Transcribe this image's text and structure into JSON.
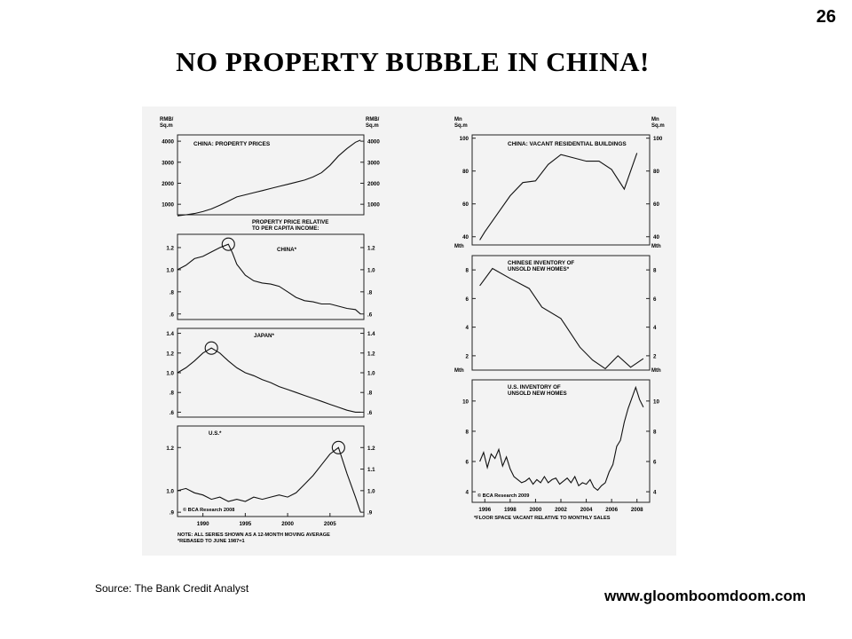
{
  "page_number": "26",
  "title": "NO PROPERTY BUBBLE IN CHINA!",
  "source": "Source: The Bank Credit Analyst",
  "website": "www.gloomboomdoom.com",
  "chart_data": [
    {
      "type": "line",
      "title": "CHINA: PROPERTY PRICES",
      "unit_label": [
        "RMB/",
        "Sq.m"
      ],
      "ylim": [
        500,
        4300
      ],
      "yticks": [
        1000,
        2000,
        3000,
        4000
      ],
      "xlim": [
        1987,
        2009
      ],
      "x": [
        1987,
        1988,
        1989,
        1990,
        1991,
        1992,
        1993,
        1994,
        1995,
        1996,
        1997,
        1998,
        1999,
        2000,
        2001,
        2002,
        2003,
        2004,
        2005,
        2006,
        2007,
        2008,
        2008.6
      ],
      "values": [
        450,
        500,
        560,
        650,
        780,
        950,
        1150,
        1350,
        1450,
        1550,
        1650,
        1750,
        1850,
        1950,
        2050,
        2150,
        2300,
        2500,
        2850,
        3300,
        3650,
        3950,
        4050
      ]
    },
    {
      "type": "line",
      "title": "PROPERTY PRICE RELATIVE TO PER CAPITA INCOME:",
      "title_lines": [
        "PROPERTY PRICE RELATIVE",
        "TO PER CAPITA INCOME:"
      ],
      "series_label": "CHINA*",
      "ylim": [
        0.55,
        1.32
      ],
      "yticks": [
        0.6,
        0.8,
        1.0,
        1.2
      ],
      "yticklabels": [
        ".6",
        ".8",
        "1.0",
        "1.2"
      ],
      "xlim": [
        1987,
        2009
      ],
      "peak_marker": [
        1993,
        1.23
      ],
      "x": [
        1987,
        1988,
        1989,
        1990,
        1991,
        1992,
        1993,
        1993.5,
        1994,
        1995,
        1996,
        1997,
        1998,
        1999,
        2000,
        2001,
        2002,
        2003,
        2004,
        2005,
        2006,
        2007,
        2008,
        2008.6
      ],
      "values": [
        1.0,
        1.04,
        1.1,
        1.12,
        1.16,
        1.2,
        1.23,
        1.15,
        1.05,
        0.95,
        0.9,
        0.88,
        0.87,
        0.85,
        0.8,
        0.75,
        0.72,
        0.71,
        0.69,
        0.69,
        0.67,
        0.65,
        0.64,
        0.6
      ]
    },
    {
      "type": "line",
      "series_label": "JAPAN*",
      "ylim": [
        0.55,
        1.45
      ],
      "yticks": [
        0.6,
        0.8,
        1.0,
        1.2,
        1.4
      ],
      "yticklabels": [
        ".6",
        ".8",
        "1.0",
        "1.2",
        "1.4"
      ],
      "xlim": [
        1987,
        2009
      ],
      "peak_marker": [
        1991,
        1.25
      ],
      "x": [
        1987,
        1988,
        1989,
        1990,
        1991,
        1992,
        1993,
        1994,
        1995,
        1996,
        1997,
        1998,
        1999,
        2000,
        2001,
        2002,
        2003,
        2004,
        2005,
        2006,
        2007,
        2008,
        2008.6
      ],
      "values": [
        1.0,
        1.05,
        1.12,
        1.2,
        1.25,
        1.2,
        1.12,
        1.05,
        1.0,
        0.97,
        0.93,
        0.9,
        0.86,
        0.83,
        0.8,
        0.77,
        0.74,
        0.71,
        0.68,
        0.65,
        0.62,
        0.6,
        0.6
      ]
    },
    {
      "type": "line",
      "series_label": "U.S.*",
      "ylim": [
        0.88,
        1.3
      ],
      "yticks": [
        0.9,
        1.0,
        1.2
      ],
      "yticklabels": [
        ".9",
        "1.0",
        "1.2"
      ],
      "right_yticks": [
        0.9,
        1.0,
        1.1,
        1.2
      ],
      "right_yticklabels": [
        ".9",
        "1.0",
        "1.1",
        "1.2"
      ],
      "xlim": [
        1987,
        2009
      ],
      "xticks": [
        1990,
        1995,
        2000,
        2005
      ],
      "annotation": "© BCA Research 2008",
      "notes": [
        "NOTE: ALL SERIES SHOWN AS A 12-MONTH MOVING AVERAGE",
        "*REBASED TO JUNE 1987=1"
      ],
      "peak_marker": [
        2006,
        1.2
      ],
      "x": [
        1987,
        1988,
        1989,
        1990,
        1991,
        1992,
        1993,
        1994,
        1995,
        1996,
        1997,
        1998,
        1999,
        2000,
        2001,
        2002,
        2003,
        2004,
        2005,
        2006,
        2007,
        2008,
        2008.6
      ],
      "values": [
        1.0,
        1.01,
        0.99,
        0.98,
        0.96,
        0.97,
        0.95,
        0.96,
        0.95,
        0.97,
        0.96,
        0.97,
        0.98,
        0.97,
        0.99,
        1.03,
        1.07,
        1.12,
        1.17,
        1.2,
        1.08,
        0.97,
        0.9
      ]
    },
    {
      "type": "line",
      "title": "CHINA: VACANT RESIDENTIAL BUILDINGS",
      "unit_label": [
        "Mn",
        "Sq.m"
      ],
      "ylim": [
        35,
        102
      ],
      "yticks": [
        40,
        60,
        80,
        100
      ],
      "xlim": [
        1995,
        2009
      ],
      "x": [
        1995.6,
        1996,
        1997,
        1998,
        1999,
        2000,
        2001,
        2002,
        2003,
        2004,
        2005,
        2006,
        2007,
        2008
      ],
      "values": [
        38,
        43,
        54,
        65,
        73,
        74,
        84,
        90,
        88,
        86,
        86,
        81,
        69,
        91
      ]
    },
    {
      "type": "line",
      "title": "CHINESE INVENTORY OF UNSOLD NEW HOMES*",
      "title_lines": [
        "CHINESE INVENTORY OF",
        "UNSOLD NEW HOMES*"
      ],
      "unit_label": [
        "Mth"
      ],
      "ylim": [
        1,
        9
      ],
      "yticks": [
        2,
        4,
        6,
        8
      ],
      "xlim": [
        1995,
        2009
      ],
      "x": [
        1995.6,
        1996.6,
        1998,
        1999.5,
        2000.5,
        2002,
        2003.5,
        2004.5,
        2005.5,
        2006.5,
        2007.5,
        2008.5
      ],
      "values": [
        6.9,
        8.1,
        7.4,
        6.7,
        5.4,
        4.6,
        2.6,
        1.7,
        1.1,
        2.0,
        1.2,
        1.8
      ]
    },
    {
      "type": "line",
      "title": "U.S. INVENTORY OF UNSOLD NEW HOMES",
      "title_lines": [
        "U.S. INVENTORY OF",
        "UNSOLD NEW HOMES"
      ],
      "unit_label": [
        "Mth"
      ],
      "ylim": [
        3.3,
        11.4
      ],
      "yticks": [
        4,
        6,
        8,
        10
      ],
      "xlim": [
        1995,
        2009
      ],
      "xticks": [
        1996,
        1998,
        2000,
        2002,
        2004,
        2006,
        2008
      ],
      "annotation": "© BCA Research 2009",
      "note": "*FLOOR SPACE VACANT RELATIVE TO MONTHLY SALES",
      "x": [
        1995.6,
        1995.9,
        1996.2,
        1996.5,
        1996.8,
        1997.1,
        1997.4,
        1997.7,
        1998.0,
        1998.3,
        1998.6,
        1998.9,
        1999.2,
        1999.5,
        1999.8,
        2000.1,
        2000.4,
        2000.7,
        2001.0,
        2001.3,
        2001.6,
        2001.9,
        2002.2,
        2002.5,
        2002.8,
        2003.1,
        2003.4,
        2003.7,
        2004.0,
        2004.3,
        2004.6,
        2004.9,
        2005.2,
        2005.5,
        2005.8,
        2006.1,
        2006.4,
        2006.7,
        2007.0,
        2007.3,
        2007.6,
        2007.9,
        2008.2,
        2008.5
      ],
      "values": [
        6.0,
        6.6,
        5.6,
        6.5,
        6.2,
        6.8,
        5.7,
        6.3,
        5.5,
        5.0,
        4.8,
        4.6,
        4.7,
        4.9,
        4.5,
        4.8,
        4.6,
        5.0,
        4.6,
        4.8,
        4.9,
        4.5,
        4.7,
        4.9,
        4.6,
        5.0,
        4.4,
        4.6,
        4.5,
        4.8,
        4.3,
        4.1,
        4.4,
        4.6,
        5.3,
        5.8,
        7.0,
        7.4,
        8.6,
        9.5,
        10.2,
        10.9,
        10.1,
        9.6
      ]
    }
  ]
}
